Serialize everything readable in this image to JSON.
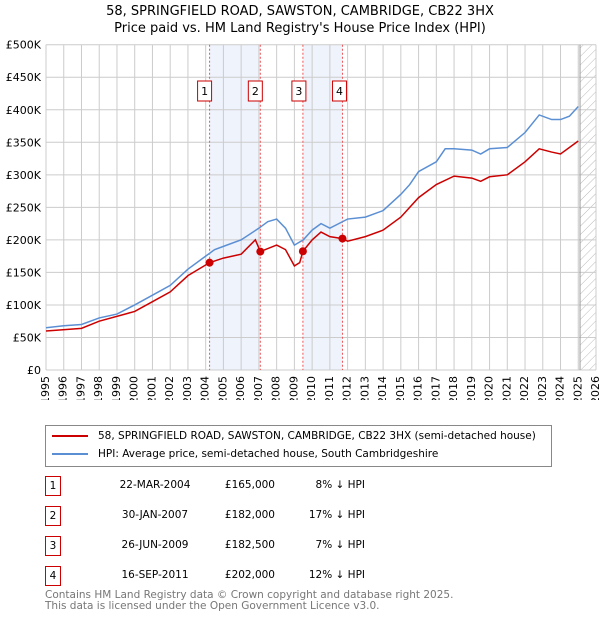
{
  "chart_data": {
    "type": "line",
    "title": "58, SPRINGFIELD ROAD, SAWSTON, CAMBRIDGE, CB22 3HX",
    "subtitle": "Price paid vs. HM Land Registry's House Price Index (HPI)",
    "xlim": [
      1995,
      2026
    ],
    "ylim": [
      0,
      500000
    ],
    "yticks": [
      0,
      50000,
      100000,
      150000,
      200000,
      250000,
      300000,
      350000,
      400000,
      450000,
      500000
    ],
    "ytick_labels": [
      "£0",
      "£50K",
      "£100K",
      "£150K",
      "£200K",
      "£250K",
      "£300K",
      "£350K",
      "£400K",
      "£450K",
      "£500K"
    ],
    "xticks": [
      "1995",
      "1996",
      "1997",
      "1998",
      "1999",
      "2000",
      "2001",
      "2002",
      "2003",
      "2004",
      "2005",
      "2006",
      "2007",
      "2008",
      "2009",
      "2010",
      "2011",
      "2012",
      "2013",
      "2014",
      "2015",
      "2016",
      "2017",
      "2018",
      "2019",
      "2020",
      "2021",
      "2022",
      "2023",
      "2024",
      "2025",
      "2026"
    ],
    "grid": true,
    "series": [
      {
        "name": "58, SPRINGFIELD ROAD, SAWSTON, CAMBRIDGE, CB22 3HX (semi-detached house)",
        "color": "#cc0000",
        "x": [
          1995,
          1997,
          1998,
          2000,
          2001,
          2002,
          2003,
          2004.22,
          2005,
          2006,
          2006.8,
          2007.08,
          2008,
          2008.5,
          2009,
          2009.3,
          2009.48,
          2010,
          2010.5,
          2011,
          2011.71,
          2012,
          2013,
          2014,
          2015,
          2016,
          2017,
          2018,
          2019,
          2019.5,
          2020,
          2021,
          2022,
          2022.8,
          2023.5,
          2024,
          2025
        ],
        "y": [
          60000,
          64000,
          75000,
          90000,
          105000,
          120000,
          145000,
          165000,
          172000,
          178000,
          200000,
          182000,
          192000,
          185000,
          160000,
          165000,
          182500,
          200000,
          212000,
          205000,
          202000,
          198000,
          205000,
          215000,
          235000,
          265000,
          285000,
          298000,
          295000,
          290000,
          297000,
          300000,
          320000,
          340000,
          335000,
          332000,
          352000
        ]
      },
      {
        "name": "HPI: Average price, semi-detached house, South Cambridgeshire",
        "color": "#5b8fd4",
        "x": [
          1995,
          1996,
          1997,
          1998,
          1999,
          2000,
          2001,
          2002,
          2003,
          2004,
          2004.5,
          2005,
          2006,
          2007,
          2007.5,
          2008,
          2008.5,
          2009,
          2009.5,
          2010,
          2010.5,
          2011,
          2011.5,
          2012,
          2013,
          2014,
          2015,
          2015.5,
          2016,
          2017,
          2017.5,
          2018,
          2019,
          2019.5,
          2020,
          2021,
          2022,
          2022.8,
          2023.5,
          2024,
          2024.5,
          2025
        ],
        "y": [
          65000,
          68000,
          70000,
          80000,
          86000,
          100000,
          115000,
          130000,
          155000,
          175000,
          185000,
          190000,
          200000,
          218000,
          228000,
          232000,
          218000,
          192000,
          200000,
          215000,
          225000,
          218000,
          225000,
          232000,
          235000,
          245000,
          270000,
          285000,
          305000,
          320000,
          340000,
          340000,
          338000,
          332000,
          340000,
          342000,
          365000,
          392000,
          385000,
          385000,
          390000,
          405000
        ]
      }
    ],
    "sales": [
      {
        "n": "1",
        "x": 2004.22,
        "price": 165000,
        "date": "22-MAR-2004",
        "price_label": "£165,000",
        "pct": "8% ↓ HPI"
      },
      {
        "n": "2",
        "x": 2007.08,
        "price": 182000,
        "date": "30-JAN-2007",
        "price_label": "£182,000",
        "pct": "17% ↓ HPI"
      },
      {
        "n": "3",
        "x": 2009.48,
        "price": 182500,
        "date": "26-JUN-2009",
        "price_label": "£182,500",
        "pct": "7% ↓ HPI"
      },
      {
        "n": "4",
        "x": 2011.71,
        "price": 202000,
        "date": "16-SEP-2011",
        "price_label": "£202,000",
        "pct": "12% ↓ HPI"
      }
    ],
    "shaded": [
      [
        2004.22,
        2007.08
      ],
      [
        2009.48,
        2011.71
      ]
    ],
    "forecast_start": 2025.1
  },
  "legend": {
    "red": "58, SPRINGFIELD ROAD, SAWSTON, CAMBRIDGE, CB22 3HX (semi-detached house)",
    "blue": "HPI: Average price, semi-detached house, South Cambridgeshire"
  },
  "footer": {
    "line1": "Contains HM Land Registry data © Crown copyright and database right 2025.",
    "line2": "This data is licensed under the Open Government Licence v3.0."
  }
}
